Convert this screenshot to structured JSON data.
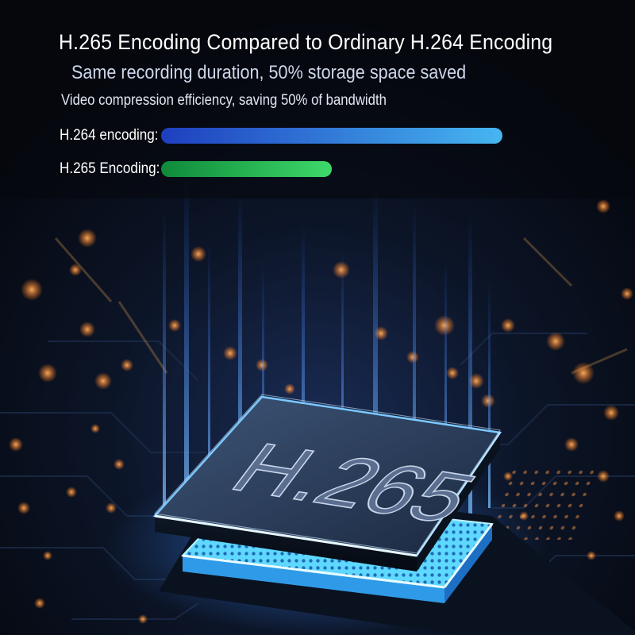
{
  "header": {
    "title": "H.265 Encoding Compared to Ordinary H.264 Encoding",
    "subtitle": "Same recording duration, 50% storage space saved",
    "caption": "Video compression efficiency, saving 50% of bandwidth"
  },
  "comparison": {
    "bars": [
      {
        "label": "H.264 encoding:",
        "level": 1.0,
        "color_start": "#1e3fbf",
        "color_end": "#46b6f0"
      },
      {
        "label": "H.265 Encoding:",
        "level": 0.5,
        "color_start": "#0f8a3a",
        "color_end": "#3ed86a"
      }
    ]
  },
  "chip": {
    "label": "H.265",
    "glow_color": "#3a8cff",
    "pad_color": "#5fd8ff"
  },
  "background": {
    "base_color": "#070b14",
    "light_color": "#ff9a3c"
  }
}
